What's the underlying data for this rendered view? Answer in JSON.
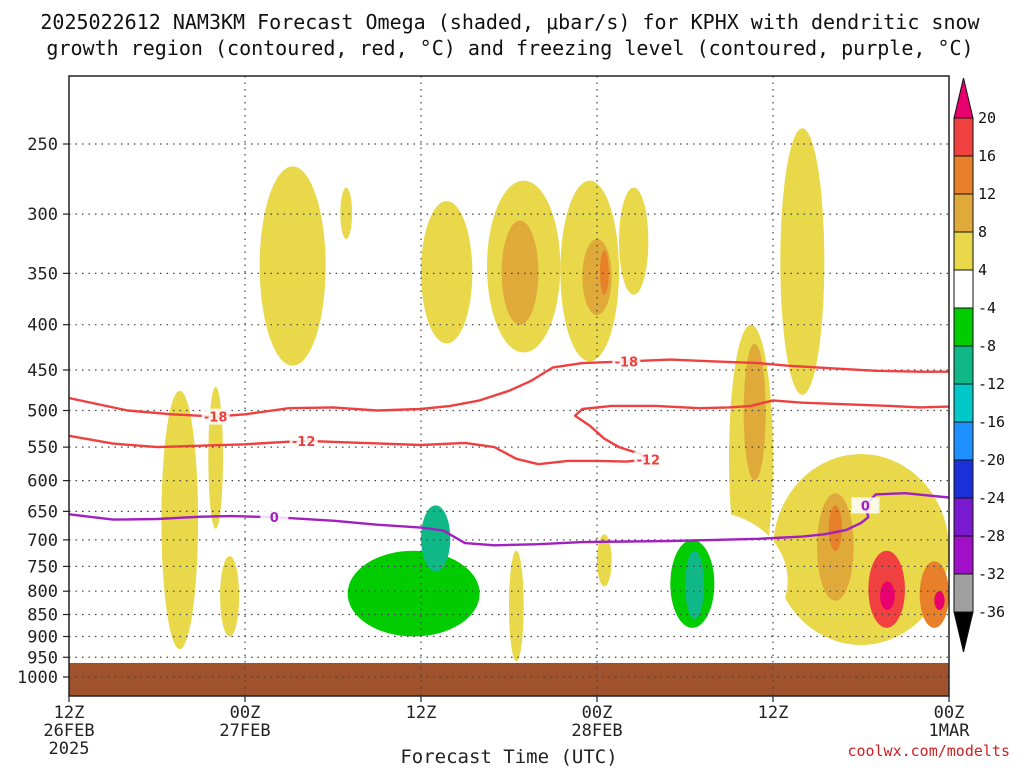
{
  "chart_data": {
    "type": "heatmap",
    "title_line1": "2025022612 NAM3KM Forecast Omega (shaded, μbar/s) for KPHX with dendritic snow",
    "title_line2": "growth region (contoured, red, °C) and freezing level (contoured, purple, °C)",
    "xlabel": "Forecast Time (UTC)",
    "credit": "coolwx.com/modelts",
    "y_axis": {
      "scale": "pressure",
      "unit": "hPa",
      "ticks": [
        250,
        300,
        350,
        400,
        450,
        500,
        550,
        600,
        650,
        700,
        750,
        800,
        850,
        900,
        950,
        1000
      ]
    },
    "x_axis": {
      "range_hours": [
        0,
        60
      ],
      "ticks": [
        {
          "hour": 0,
          "line1": "12Z",
          "line2": "26FEB",
          "line3": "2025"
        },
        {
          "hour": 12,
          "line1": "00Z",
          "line2": "27FEB",
          "line3": ""
        },
        {
          "hour": 24,
          "line1": "12Z",
          "line2": "",
          "line3": ""
        },
        {
          "hour": 36,
          "line1": "00Z",
          "line2": "28FEB",
          "line3": ""
        },
        {
          "hour": 48,
          "line1": "12Z",
          "line2": "",
          "line3": ""
        },
        {
          "hour": 60,
          "line1": "00Z",
          "line2": "1MAR",
          "line3": ""
        }
      ]
    },
    "colorbar": {
      "labels": [
        "20",
        "16",
        "12",
        "8",
        "4",
        "-4",
        "-8",
        "-12",
        "-16",
        "-20",
        "-24",
        "-28",
        "-32",
        "-36"
      ],
      "colors": [
        "#e8006e",
        "#f04040",
        "#e8802a",
        "#e0aa3a",
        "#e8d84a",
        "#ffffff",
        "#00cc00",
        "#10b888",
        "#00c8c8",
        "#1e90ff",
        "#1a30d8",
        "#7a1ad0",
        "#a010c8",
        "#a0a0a0"
      ]
    },
    "contours": [
      {
        "label": "-18",
        "color": "#ee4040",
        "points": [
          [
            0,
            484
          ],
          [
            4,
            500
          ],
          [
            7,
            505
          ],
          [
            10,
            508
          ],
          [
            12,
            505
          ],
          [
            15,
            497
          ],
          [
            18,
            496
          ],
          [
            21,
            500
          ],
          [
            24,
            498
          ],
          [
            26,
            494
          ],
          [
            28,
            487
          ],
          [
            30,
            475
          ],
          [
            31.5,
            463
          ],
          [
            33,
            447
          ],
          [
            35,
            442
          ],
          [
            38,
            440
          ],
          [
            41,
            438
          ],
          [
            44,
            440
          ],
          [
            47,
            442
          ],
          [
            49,
            445
          ],
          [
            52,
            448
          ],
          [
            55,
            451
          ],
          [
            58,
            452
          ],
          [
            60,
            452
          ]
        ]
      },
      {
        "label": "-12",
        "color": "#ee4040",
        "points": [
          [
            0,
            534
          ],
          [
            3,
            545
          ],
          [
            6,
            550
          ],
          [
            9,
            548
          ],
          [
            12,
            546
          ],
          [
            16,
            541
          ],
          [
            20,
            544
          ],
          [
            24,
            547
          ],
          [
            27,
            544
          ],
          [
            29,
            550
          ],
          [
            30.5,
            567
          ],
          [
            32,
            575
          ],
          [
            34,
            570
          ],
          [
            36,
            570
          ],
          [
            38,
            571
          ],
          [
            39.5,
            568
          ],
          [
            39,
            560
          ],
          [
            37.5,
            550
          ],
          [
            36.5,
            538
          ],
          [
            35.5,
            520
          ],
          [
            34.5,
            507
          ],
          [
            35,
            498
          ],
          [
            37,
            494
          ],
          [
            40,
            494
          ],
          [
            43,
            497
          ],
          [
            45,
            496
          ],
          [
            46.5,
            494
          ],
          [
            48,
            487
          ],
          [
            50,
            490
          ],
          [
            53,
            492
          ],
          [
            56,
            494
          ],
          [
            58,
            496
          ],
          [
            60,
            495
          ]
        ]
      },
      {
        "label": "0",
        "color": "#a020c0",
        "points": [
          [
            0,
            655
          ],
          [
            3,
            664
          ],
          [
            6,
            663
          ],
          [
            9,
            659
          ],
          [
            11,
            658
          ],
          [
            14,
            660
          ],
          [
            18,
            666
          ],
          [
            21,
            673
          ],
          [
            24,
            678
          ],
          [
            25.5,
            683
          ],
          [
            27,
            706
          ],
          [
            29,
            710
          ],
          [
            32,
            708
          ],
          [
            35,
            704
          ],
          [
            38,
            703
          ],
          [
            41,
            702
          ],
          [
            44,
            700
          ],
          [
            47,
            698
          ],
          [
            50,
            694
          ],
          [
            51.5,
            690
          ],
          [
            53,
            682
          ],
          [
            54,
            670
          ],
          [
            54.5,
            660
          ],
          [
            54.3,
            640
          ],
          [
            55,
            622
          ],
          [
            57,
            620
          ],
          [
            60,
            627
          ]
        ]
      }
    ],
    "features": [
      {
        "sign": "positive",
        "value": 4,
        "x": [
          6.3,
          8.8
        ],
        "p": [
          475,
          930
        ]
      },
      {
        "sign": "positive",
        "value": 4,
        "x": [
          9.5,
          10.5
        ],
        "p": [
          470,
          680
        ]
      },
      {
        "sign": "positive",
        "value": 4,
        "x": [
          10.3,
          11.6
        ],
        "p": [
          730,
          900
        ]
      },
      {
        "sign": "positive",
        "value": 4,
        "x": [
          13.0,
          17.5
        ],
        "p": [
          265,
          445
        ]
      },
      {
        "sign": "positive",
        "value": 4,
        "x": [
          18.5,
          19.3
        ],
        "p": [
          280,
          320
        ]
      },
      {
        "sign": "positive",
        "value": 4,
        "x": [
          24.0,
          27.5
        ],
        "p": [
          290,
          420
        ]
      },
      {
        "sign": "positive",
        "value": 4,
        "x": [
          28.5,
          33.5
        ],
        "p": [
          275,
          430
        ]
      },
      {
        "sign": "positive",
        "value": 8,
        "x": [
          29.5,
          32.0
        ],
        "p": [
          305,
          400
        ]
      },
      {
        "sign": "positive",
        "value": 4,
        "x": [
          33.5,
          37.5
        ],
        "p": [
          275,
          440
        ]
      },
      {
        "sign": "positive",
        "value": 8,
        "x": [
          35.0,
          37.0
        ],
        "p": [
          320,
          390
        ]
      },
      {
        "sign": "positive",
        "value": 12,
        "x": [
          36.2,
          36.8
        ],
        "p": [
          330,
          370
        ]
      },
      {
        "sign": "positive",
        "value": 4,
        "x": [
          37.5,
          39.5
        ],
        "p": [
          280,
          370
        ]
      },
      {
        "sign": "positive",
        "value": 4,
        "x": [
          45.0,
          48.0
        ],
        "p": [
          400,
          800
        ]
      },
      {
        "sign": "positive",
        "value": 8,
        "x": [
          46.0,
          47.5
        ],
        "p": [
          420,
          600
        ]
      },
      {
        "sign": "positive",
        "value": 4,
        "x": [
          48.5,
          51.5
        ],
        "p": [
          240,
          480
        ]
      },
      {
        "sign": "positive",
        "value": 4,
        "x": [
          48.0,
          60.0
        ],
        "p": [
          560,
          920
        ]
      },
      {
        "sign": "positive",
        "value": 8,
        "x": [
          51.0,
          53.5
        ],
        "p": [
          620,
          820
        ]
      },
      {
        "sign": "positive",
        "value": 12,
        "x": [
          51.8,
          52.7
        ],
        "p": [
          640,
          720
        ]
      },
      {
        "sign": "positive",
        "value": 16,
        "x": [
          54.5,
          57.0
        ],
        "p": [
          720,
          880
        ]
      },
      {
        "sign": "positive",
        "value": 20,
        "x": [
          55.3,
          56.3
        ],
        "p": [
          780,
          840
        ]
      },
      {
        "sign": "positive",
        "value": 12,
        "x": [
          58.0,
          60.0
        ],
        "p": [
          740,
          880
        ]
      },
      {
        "sign": "positive",
        "value": 20,
        "x": [
          59.0,
          59.7
        ],
        "p": [
          800,
          840
        ]
      },
      {
        "sign": "positive",
        "value": 4,
        "x": [
          30.0,
          31.0
        ],
        "p": [
          720,
          960
        ]
      },
      {
        "sign": "positive",
        "value": 4,
        "x": [
          36.0,
          37.0
        ],
        "p": [
          690,
          790
        ]
      },
      {
        "sign": "negative",
        "value": -4,
        "x": [
          0.0,
          1.3
        ],
        "p": [
          420,
          850
        ]
      },
      {
        "sign": "negative",
        "value": -4,
        "x": [
          16.5,
          17.5
        ],
        "p": [
          520,
          590
        ]
      },
      {
        "sign": "negative",
        "value": -4,
        "x": [
          18.0,
          30.0
        ],
        "p": [
          590,
          950
        ]
      },
      {
        "sign": "negative",
        "value": -8,
        "x": [
          19.0,
          28.0
        ],
        "p": [
          720,
          900
        ]
      },
      {
        "sign": "negative",
        "value": -12,
        "x": [
          24.0,
          26.0
        ],
        "p": [
          640,
          760
        ]
      },
      {
        "sign": "negative",
        "value": -4,
        "x": [
          38.0,
          49.0
        ],
        "p": [
          650,
          930
        ]
      },
      {
        "sign": "negative",
        "value": -8,
        "x": [
          41.0,
          44.0
        ],
        "p": [
          700,
          880
        ]
      },
      {
        "sign": "negative",
        "value": -12,
        "x": [
          42.0,
          43.3
        ],
        "p": [
          720,
          860
        ]
      },
      {
        "sign": "negative",
        "value": -4,
        "x": [
          59.0,
          60.0
        ],
        "p": [
          560,
          630
        ]
      }
    ]
  }
}
